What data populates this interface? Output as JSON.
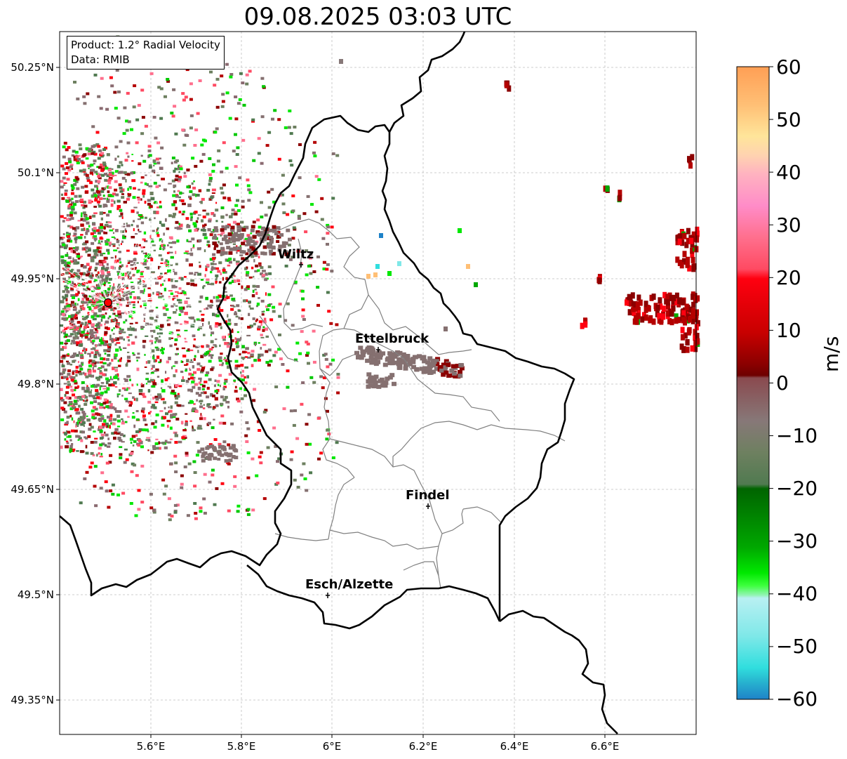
{
  "title": "09.08.2025 03:03 UTC",
  "info": {
    "product": "Product: 1.2° Radial Velocity",
    "data_source": "Data: RMIB"
  },
  "axes": {
    "lat_ticks": [
      "50.25°N",
      "50.1°N",
      "49.95°N",
      "49.8°N",
      "49.65°N",
      "49.5°N",
      "49.35°N"
    ],
    "lon_ticks": [
      "5.6°E",
      "5.8°E",
      "6°E",
      "6.2°E",
      "6.4°E",
      "6.6°E"
    ]
  },
  "places": [
    {
      "name": "Wiltz"
    },
    {
      "name": "Ettelbruck"
    },
    {
      "name": "Findel"
    },
    {
      "name": "Esch/Alzette"
    }
  ],
  "colorbar": {
    "unit": "m/s",
    "tick_labels": [
      "60",
      "50",
      "40",
      "30",
      "20",
      "10",
      "0",
      "−10",
      "−20",
      "−30",
      "−40",
      "−50",
      "−60"
    ],
    "range": [
      -60,
      60
    ]
  },
  "colors": {
    "radar_site": "#ff0000",
    "border_national": "#000000",
    "border_cantonal": "#808080",
    "gridline": "#bfbfbf"
  }
}
